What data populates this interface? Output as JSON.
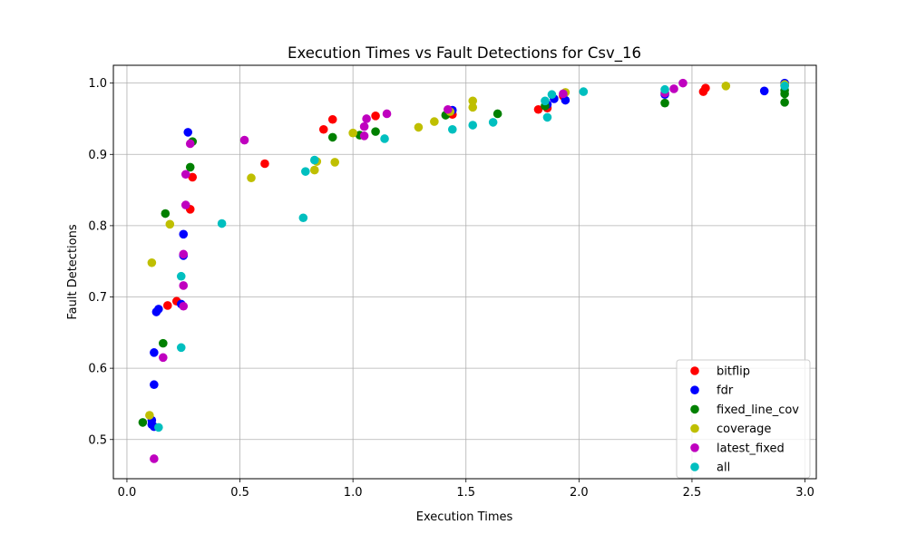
{
  "chart_data": {
    "type": "scatter",
    "title": "Execution Times vs Fault Detections for Csv_16",
    "xlabel": "Execution Times",
    "ylabel": "Fault Detections",
    "xlim": [
      -0.06,
      3.05
    ],
    "ylim": [
      0.445,
      1.025
    ],
    "xticks": [
      0.0,
      0.5,
      1.0,
      1.5,
      2.0,
      2.5,
      3.0
    ],
    "xtick_labels": [
      "0.0",
      "0.5",
      "1.0",
      "1.5",
      "2.0",
      "2.5",
      "3.0"
    ],
    "yticks": [
      0.5,
      0.6,
      0.7,
      0.8,
      0.9,
      1.0
    ],
    "ytick_labels": [
      "0.5",
      "0.6",
      "0.7",
      "0.8",
      "0.9",
      "1.0"
    ],
    "grid": true,
    "legend_position": "lower-right",
    "series": [
      {
        "name": "bitflip",
        "color": "#ff0000",
        "points": [
          [
            0.18,
            0.688
          ],
          [
            0.22,
            0.694
          ],
          [
            0.28,
            0.823
          ],
          [
            0.29,
            0.868
          ],
          [
            0.61,
            0.887
          ],
          [
            0.87,
            0.935
          ],
          [
            0.91,
            0.949
          ],
          [
            1.1,
            0.954
          ],
          [
            1.44,
            0.956
          ],
          [
            1.82,
            0.963
          ],
          [
            1.86,
            0.965
          ],
          [
            1.93,
            0.982
          ],
          [
            2.55,
            0.988
          ],
          [
            2.56,
            0.993
          ],
          [
            2.91,
            0.997
          ]
        ]
      },
      {
        "name": "fdr",
        "color": "#0000ff",
        "points": [
          [
            0.11,
            0.521
          ],
          [
            0.11,
            0.527
          ],
          [
            0.12,
            0.518
          ],
          [
            0.12,
            0.577
          ],
          [
            0.12,
            0.622
          ],
          [
            0.13,
            0.679
          ],
          [
            0.14,
            0.683
          ],
          [
            0.24,
            0.69
          ],
          [
            0.25,
            0.758
          ],
          [
            0.25,
            0.788
          ],
          [
            0.27,
            0.931
          ],
          [
            1.44,
            0.962
          ],
          [
            1.86,
            0.97
          ],
          [
            1.89,
            0.978
          ],
          [
            1.94,
            0.976
          ],
          [
            2.38,
            0.984
          ],
          [
            2.82,
            0.989
          ],
          [
            2.91,
            1.0
          ]
        ]
      },
      {
        "name": "fixed_line_cov",
        "color": "#008000",
        "points": [
          [
            0.07,
            0.524
          ],
          [
            0.16,
            0.635
          ],
          [
            0.17,
            0.817
          ],
          [
            0.28,
            0.882
          ],
          [
            0.29,
            0.918
          ],
          [
            0.91,
            0.924
          ],
          [
            1.03,
            0.927
          ],
          [
            1.1,
            0.932
          ],
          [
            1.41,
            0.955
          ],
          [
            1.64,
            0.957
          ],
          [
            1.85,
            0.968
          ],
          [
            2.38,
            0.972
          ],
          [
            2.91,
            0.973
          ],
          [
            2.91,
            0.985
          ],
          [
            2.91,
            0.99
          ]
        ]
      },
      {
        "name": "coverage",
        "color": "#bfbf00",
        "points": [
          [
            0.1,
            0.534
          ],
          [
            0.11,
            0.748
          ],
          [
            0.19,
            0.802
          ],
          [
            0.55,
            0.867
          ],
          [
            0.83,
            0.878
          ],
          [
            0.84,
            0.89
          ],
          [
            0.92,
            0.889
          ],
          [
            1.0,
            0.93
          ],
          [
            1.29,
            0.938
          ],
          [
            1.36,
            0.946
          ],
          [
            1.43,
            0.96
          ],
          [
            1.53,
            0.966
          ],
          [
            1.53,
            0.975
          ],
          [
            1.94,
            0.987
          ],
          [
            2.65,
            0.996
          ],
          [
            2.91,
            0.998
          ]
        ]
      },
      {
        "name": "latest_fixed",
        "color": "#bf00bf",
        "points": [
          [
            0.12,
            0.473
          ],
          [
            0.16,
            0.615
          ],
          [
            0.25,
            0.687
          ],
          [
            0.25,
            0.716
          ],
          [
            0.25,
            0.76
          ],
          [
            0.26,
            0.829
          ],
          [
            0.26,
            0.872
          ],
          [
            0.28,
            0.915
          ],
          [
            0.52,
            0.92
          ],
          [
            1.05,
            0.926
          ],
          [
            1.05,
            0.939
          ],
          [
            1.06,
            0.95
          ],
          [
            1.15,
            0.957
          ],
          [
            1.42,
            0.963
          ],
          [
            1.93,
            0.985
          ],
          [
            2.38,
            0.986
          ],
          [
            2.42,
            0.992
          ],
          [
            2.46,
            1.0
          ]
        ]
      },
      {
        "name": "all",
        "color": "#00bfbf",
        "points": [
          [
            0.14,
            0.517
          ],
          [
            0.24,
            0.629
          ],
          [
            0.24,
            0.729
          ],
          [
            0.42,
            0.803
          ],
          [
            0.78,
            0.811
          ],
          [
            0.79,
            0.876
          ],
          [
            0.83,
            0.892
          ],
          [
            1.14,
            0.922
          ],
          [
            1.44,
            0.935
          ],
          [
            1.53,
            0.941
          ],
          [
            1.62,
            0.945
          ],
          [
            1.86,
            0.952
          ],
          [
            1.85,
            0.975
          ],
          [
            1.88,
            0.984
          ],
          [
            2.02,
            0.988
          ],
          [
            2.38,
            0.991
          ],
          [
            2.91,
            0.996
          ]
        ]
      }
    ]
  }
}
